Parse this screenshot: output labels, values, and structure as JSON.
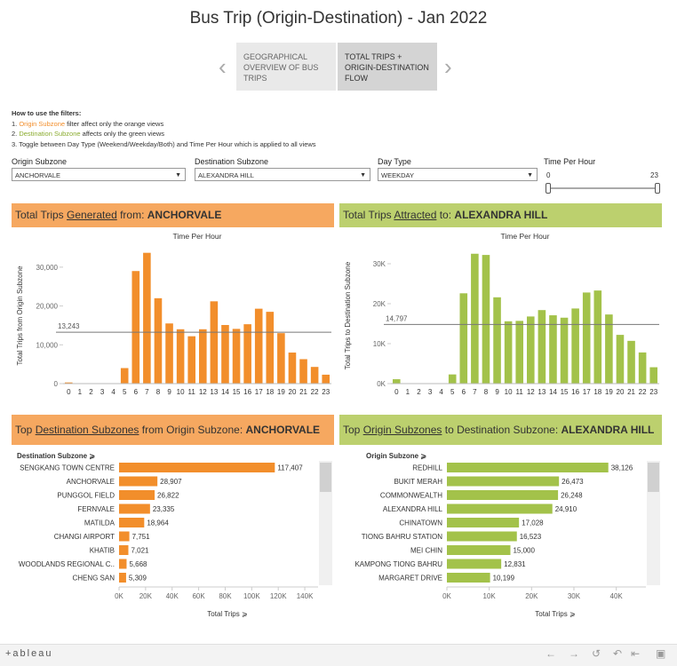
{
  "title": "Bus Trip (Origin-Destination) - Jan 2022",
  "story_points": [
    {
      "label": "GEOGRAPHICAL OVERVIEW OF BUS TRIPS"
    },
    {
      "label": "TOTAL TRIPS + ORIGIN-DESTINATION FLOW"
    }
  ],
  "help": {
    "heading": "How to use the filters:",
    "line1_prefix": "1. ",
    "line1_highlight": "Origin Subzone",
    "line1_rest": " filter affect only the orange views",
    "line2_prefix": "2. ",
    "line2_highlight": "Destination Subzone",
    "line2_rest": " affects only the green views",
    "line3": "3. Toggle between Day Type (Weekend/Weekday/Both) and Time Per Hour which is applied to all views"
  },
  "filters": {
    "origin_label": "Origin Subzone",
    "origin_value": "ANCHORVALE",
    "destination_label": "Destination Subzone",
    "destination_value": "ALEXANDRA HILL",
    "daytype_label": "Day Type",
    "daytype_value": "WEEKDAY",
    "time_label": "Time Per Hour",
    "time_min": "0",
    "time_max": "23"
  },
  "banners": {
    "left_prefix": "Total Trips ",
    "left_link": "Generated",
    "left_mid": " from: ",
    "left_bold": "ANCHORVALE",
    "right_prefix": "Total Trips ",
    "right_link": "Attracted",
    "right_mid": " to: ",
    "right_bold": "ALEXANDRA HILL",
    "bl_prefix": "Top ",
    "bl_link": "Destination Subzones",
    "bl_mid": " from Origin Subzone: ",
    "bl_bold": "ANCHORVALE",
    "br_prefix": "Top ",
    "br_link": "Origin Subzones",
    "br_mid": " to Destination Subzone: ",
    "br_bold": "ALEXANDRA HILL"
  },
  "colors": {
    "orange": "#f28e2b",
    "green": "#a3c24a",
    "orange_banner": "#f6a860",
    "green_banner": "#bcd06e"
  },
  "toolbar": {
    "logo": "+ableau"
  },
  "chart_data": [
    {
      "type": "bar",
      "title": "Time Per Hour",
      "ylabel": "Total Trips from Origin Subzone",
      "x": [
        0,
        1,
        2,
        3,
        4,
        5,
        6,
        7,
        8,
        9,
        10,
        11,
        12,
        13,
        14,
        15,
        16,
        17,
        18,
        19,
        20,
        21,
        22,
        23
      ],
      "values": [
        300,
        0,
        0,
        0,
        0,
        4000,
        29000,
        33700,
        22000,
        15500,
        14000,
        12200,
        14000,
        21200,
        15100,
        14100,
        15300,
        19300,
        18500,
        13000,
        8000,
        6300,
        4300,
        2300
      ],
      "yticks": [
        "0",
        "10,000",
        "20,000",
        "30,000"
      ],
      "ylim": [
        0,
        35000
      ],
      "reference_line": 13243,
      "reference_label": "13,243"
    },
    {
      "type": "bar",
      "title": "Time Per Hour",
      "ylabel": "Total Trips to Destination Subzone",
      "x": [
        0,
        1,
        2,
        3,
        4,
        5,
        6,
        7,
        8,
        9,
        10,
        11,
        12,
        13,
        14,
        15,
        16,
        17,
        18,
        19,
        20,
        21,
        22,
        23
      ],
      "values": [
        1100,
        0,
        0,
        0,
        0,
        2300,
        22600,
        32500,
        32200,
        21600,
        15600,
        15700,
        16800,
        18400,
        17100,
        16500,
        18800,
        22800,
        23300,
        17300,
        12200,
        10700,
        7800,
        4100
      ],
      "yticks": [
        "0K",
        "10K",
        "20K",
        "30K"
      ],
      "ylim": [
        0,
        34000
      ],
      "reference_line": 14797,
      "reference_label": "14,797"
    },
    {
      "type": "bar",
      "orientation": "horizontal",
      "header": "Destination Subzone",
      "xlabel": "Total Trips",
      "categories": [
        "SENGKANG TOWN CENTRE",
        "ANCHORVALE",
        "PUNGGOL FIELD",
        "FERNVALE",
        "MATILDA",
        "CHANGI AIRPORT",
        "KHATIB",
        "WOODLANDS REGIONAL C..",
        "CHENG SAN"
      ],
      "values": [
        117407,
        28907,
        26822,
        23335,
        18964,
        7751,
        7021,
        5668,
        5309
      ],
      "labels": [
        "117,407",
        "28,907",
        "26,822",
        "23,335",
        "18,964",
        "7,751",
        "7,021",
        "5,668",
        "5,309"
      ],
      "xticks": [
        "0K",
        "20K",
        "40K",
        "60K",
        "80K",
        "100K",
        "120K",
        "140K"
      ],
      "xlim": [
        0,
        150000
      ]
    },
    {
      "type": "bar",
      "orientation": "horizontal",
      "header": "Origin Subzone",
      "xlabel": "Total Trips",
      "categories": [
        "REDHILL",
        "BUKIT MERAH",
        "COMMONWEALTH",
        "ALEXANDRA HILL",
        "CHINATOWN",
        "TIONG BAHRU STATION",
        "MEI CHIN",
        "KAMPONG TIONG BAHRU",
        "MARGARET DRIVE"
      ],
      "values": [
        38126,
        26473,
        26248,
        24910,
        17028,
        16523,
        15000,
        12831,
        10199
      ],
      "labels": [
        "38,126",
        "26,473",
        "26,248",
        "24,910",
        "17,028",
        "16,523",
        "15,000",
        "12,831",
        "10,199"
      ],
      "xticks": [
        "0K",
        "10K",
        "20K",
        "30K",
        "40K"
      ],
      "xlim": [
        0,
        47000
      ]
    }
  ]
}
